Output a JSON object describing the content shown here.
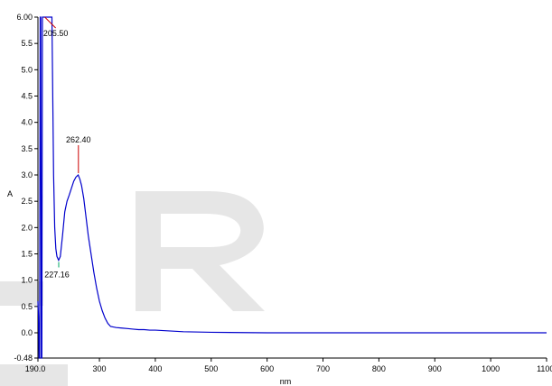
{
  "chart_data": {
    "type": "line",
    "title": "",
    "xlabel": "nm",
    "ylabel": "A",
    "xlim": [
      190,
      1100
    ],
    "ylim": [
      -0.48,
      6.0
    ],
    "grid": false,
    "legend": "none",
    "x_tick_labels": [
      "190.0",
      "300",
      "400",
      "500",
      "600",
      "700",
      "800",
      "900",
      "1000",
      "1100."
    ],
    "y_tick_labels": [
      "6.00",
      "5.5",
      "5.0",
      "4.5",
      "4.0",
      "3.5",
      "3.0",
      "2.5",
      "2.0",
      "1.5",
      "1.0",
      "0.5",
      "0.0",
      "-0.48"
    ],
    "x_ticks": [
      190,
      300,
      400,
      500,
      600,
      700,
      800,
      900,
      1000,
      1100
    ],
    "y_ticks": [
      6.0,
      5.5,
      5.0,
      4.5,
      4.0,
      3.5,
      3.0,
      2.5,
      2.0,
      1.5,
      1.0,
      0.5,
      0.0,
      -0.48
    ],
    "series": [
      {
        "color": "#0000cc",
        "x": [
          190,
          191,
          192,
          193,
          194,
          195,
          196,
          197,
          198,
          199,
          200,
          205,
          210,
          215,
          216,
          218,
          220,
          222,
          224,
          227,
          230,
          234,
          238,
          242,
          246,
          250,
          254,
          258,
          262,
          265,
          268,
          272,
          276,
          280,
          285,
          290,
          295,
          300,
          305,
          310,
          315,
          320,
          330,
          340,
          350,
          360,
          370,
          380,
          390,
          400,
          450,
          500,
          600,
          700,
          800,
          900,
          1000,
          1100
        ],
        "y": [
          0.6,
          0.3,
          -0.48,
          -0.48,
          6.0,
          6.0,
          -0.48,
          -0.48,
          6.0,
          6.0,
          6.0,
          6.0,
          6.0,
          6.0,
          5.0,
          3.0,
          2.0,
          1.6,
          1.45,
          1.38,
          1.45,
          1.85,
          2.3,
          2.5,
          2.62,
          2.75,
          2.88,
          2.96,
          3.0,
          2.92,
          2.8,
          2.55,
          2.2,
          1.85,
          1.5,
          1.15,
          0.85,
          0.6,
          0.42,
          0.28,
          0.18,
          0.12,
          0.1,
          0.09,
          0.08,
          0.07,
          0.06,
          0.06,
          0.05,
          0.05,
          0.02,
          0.01,
          0.0,
          0.0,
          0.0,
          0.0,
          0.0,
          0.0
        ]
      }
    ],
    "annotations": [
      {
        "label": "205.50",
        "x": 205.5,
        "y": 6.0,
        "color": "#cc0000"
      },
      {
        "label": "262.40",
        "x": 262.4,
        "y": 3.0,
        "color": "#cc0000"
      },
      {
        "label": "227.16",
        "x": 227.16,
        "y": 1.38,
        "color": "#00aa66"
      }
    ],
    "watermark": "ER"
  }
}
